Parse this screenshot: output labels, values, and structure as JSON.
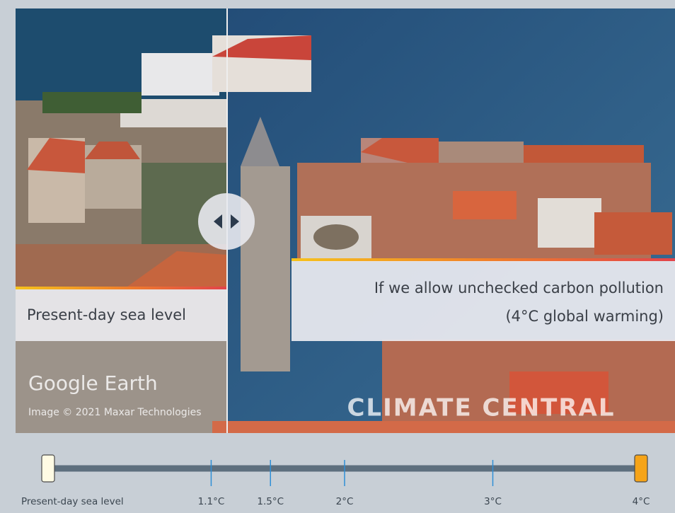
{
  "viewer": {
    "left_label": "Present-day sea level",
    "right_label": [
      "If we allow unchecked carbon pollution",
      "(4°C global warming)"
    ],
    "watermarks": {
      "google": "Google Earth",
      "credit": "Image © 2021 Maxar Technologies",
      "brand": "CLIMATE CENTRAL"
    }
  },
  "slider": {
    "range": [
      0,
      4
    ],
    "ticks": [
      {
        "value": 0,
        "label": "Present-day sea level"
      },
      {
        "value": 1.1,
        "label": "1.1°C"
      },
      {
        "value": 1.5,
        "label": "1.5°C"
      },
      {
        "value": 2,
        "label": "2°C"
      },
      {
        "value": 3,
        "label": "3°C"
      },
      {
        "value": 4,
        "label": "4°C"
      }
    ],
    "left_handle": 0,
    "right_handle": 4
  }
}
